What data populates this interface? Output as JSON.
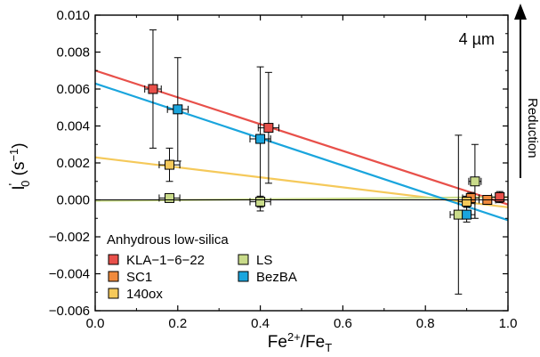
{
  "chart_data": {
    "type": "scatter",
    "xlabel": "Fe2+/FeT",
    "ylabel": "I'0 (s−1)",
    "xlim": [
      0.0,
      1.0
    ],
    "ylim": [
      -0.006,
      0.01
    ],
    "x_ticks": [
      0.0,
      0.2,
      0.4,
      0.6,
      0.8,
      1.0
    ],
    "x_tick_labels": [
      "0.0",
      "0.2",
      "0.4",
      "0.6",
      "0.8",
      "1.0"
    ],
    "y_ticks": [
      -0.006,
      -0.004,
      -0.002,
      0.0,
      0.002,
      0.004,
      0.006,
      0.008,
      0.01
    ],
    "y_tick_labels": [
      "−0.006",
      "−0.004",
      "−0.002",
      "0.000",
      "0.002",
      "0.004",
      "0.006",
      "0.008",
      "0.010"
    ],
    "grid": false,
    "legend": {
      "title": "Anhydrous low-silica",
      "placement": "lower-left",
      "columns": 2
    },
    "annotations": {
      "size_label": "4 µm",
      "side_label": "Reduction"
    },
    "colors": {
      "KLA-1-6-22": "#e8504a",
      "SC1": "#f08a3c",
      "140ox": "#f5c95a",
      "LS": "#c9db8a",
      "BezBA": "#1aa5dd"
    },
    "series": [
      {
        "name": "KLA−1−6−22",
        "color": "#e8504a",
        "points": [
          {
            "x": 0.14,
            "y": 0.006,
            "xerr": 0.02,
            "yerr": 0.0032
          },
          {
            "x": 0.42,
            "y": 0.0039,
            "xerr": 0.025,
            "yerr": 0.003
          },
          {
            "x": 0.98,
            "y": 0.00015,
            "xerr": 0.02,
            "yerr": 0.0003
          }
        ],
        "fit": {
          "x0": 0.0,
          "y0": 0.007,
          "x1": 1.0,
          "y1": -0.00025
        }
      },
      {
        "name": "SC1",
        "color": "#f08a3c",
        "points": [
          {
            "x": 0.91,
            "y": 0.0001,
            "xerr": 0.02,
            "yerr": 0.0003
          },
          {
            "x": 0.95,
            "y": 0.0,
            "xerr": 0.02,
            "yerr": 0.0002
          }
        ],
        "fit": null
      },
      {
        "name": "140ox",
        "color": "#f5c95a",
        "points": [
          {
            "x": 0.18,
            "y": 0.0019,
            "xerr": 0.025,
            "yerr": 0.0009
          },
          {
            "x": 0.9,
            "y": -0.0001,
            "xerr": 0.02,
            "yerr": 0.0003
          }
        ],
        "fit": {
          "x0": 0.0,
          "y0": 0.0023,
          "x1": 1.0,
          "y1": -0.0004
        }
      },
      {
        "name": "LS",
        "color": "#c9db8a",
        "points": [
          {
            "x": 0.18,
            "y": 0.0001,
            "xerr": 0.025,
            "yerr": 0.0002
          },
          {
            "x": 0.4,
            "y": -0.0001,
            "xerr": 0.025,
            "yerr": 0.0003
          },
          {
            "x": 0.88,
            "y": -0.0008,
            "xerr": 0.02,
            "yerr": 0.0043
          },
          {
            "x": 0.92,
            "y": 0.001,
            "xerr": 0.015,
            "yerr": 0.002
          }
        ],
        "fit": {
          "x0": 0.0,
          "y0": -5e-05,
          "x1": 1.0,
          "y1": 0.00015
        }
      },
      {
        "name": "BezBA",
        "color": "#1aa5dd",
        "points": [
          {
            "x": 0.2,
            "y": 0.0049,
            "xerr": 0.025,
            "yerr": 0.0028
          },
          {
            "x": 0.4,
            "y": 0.0033,
            "xerr": 0.025,
            "yerr": 0.0039
          },
          {
            "x": 0.9,
            "y": -0.0008,
            "xerr": 0.02,
            "yerr": 0.0004
          }
        ],
        "fit": {
          "x0": 0.0,
          "y0": 0.0063,
          "x1": 1.0,
          "y1": -0.0011
        }
      }
    ]
  }
}
